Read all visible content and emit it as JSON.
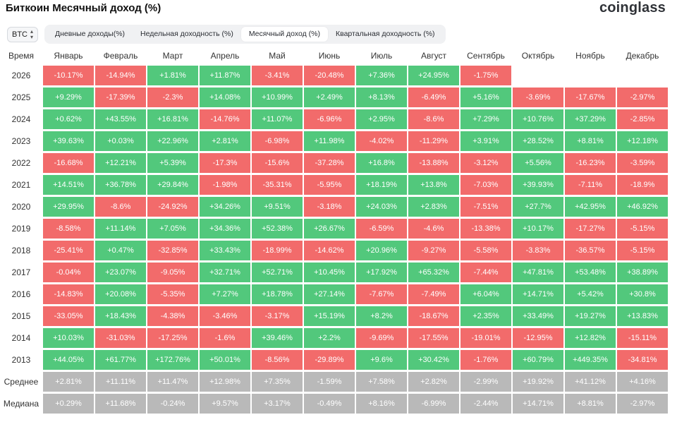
{
  "header": {
    "title": "Биткоин Месячный доход (%)",
    "logo": "coinglass"
  },
  "asset_select": {
    "value": "BTC"
  },
  "tabs": [
    {
      "label": "Дневные доходы(%)",
      "active": false
    },
    {
      "label": "Недельная доходность (%)",
      "active": false
    },
    {
      "label": "Месячный доход (%)",
      "active": true
    },
    {
      "label": "Квартальная доходность (%)",
      "active": false
    }
  ],
  "table": {
    "corner": "Время",
    "months": [
      "Январь",
      "Февраль",
      "Март",
      "Апрель",
      "Май",
      "Июнь",
      "Июль",
      "Август",
      "Сентябрь",
      "Октябрь",
      "Ноябрь",
      "Декабрь"
    ],
    "rows": [
      {
        "label": "2026",
        "kind": "year",
        "values": [
          "-10.17%",
          "-14.94%",
          "+1.81%",
          "+11.87%",
          "-3.41%",
          "-20.48%",
          "+7.36%",
          "+24.95%",
          "-1.75%",
          "",
          "",
          ""
        ]
      },
      {
        "label": "2025",
        "kind": "year",
        "values": [
          "+9.29%",
          "-17.39%",
          "-2.3%",
          "+14.08%",
          "+10.99%",
          "+2.49%",
          "+8.13%",
          "-6.49%",
          "+5.16%",
          "-3.69%",
          "-17.67%",
          "-2.97%"
        ]
      },
      {
        "label": "2024",
        "kind": "year",
        "values": [
          "+0.62%",
          "+43.55%",
          "+16.81%",
          "-14.76%",
          "+11.07%",
          "-6.96%",
          "+2.95%",
          "-8.6%",
          "+7.29%",
          "+10.76%",
          "+37.29%",
          "-2.85%"
        ]
      },
      {
        "label": "2023",
        "kind": "year",
        "values": [
          "+39.63%",
          "+0.03%",
          "+22.96%",
          "+2.81%",
          "-6.98%",
          "+11.98%",
          "-4.02%",
          "-11.29%",
          "+3.91%",
          "+28.52%",
          "+8.81%",
          "+12.18%"
        ]
      },
      {
        "label": "2022",
        "kind": "year",
        "values": [
          "-16.68%",
          "+12.21%",
          "+5.39%",
          "-17.3%",
          "-15.6%",
          "-37.28%",
          "+16.8%",
          "-13.88%",
          "-3.12%",
          "+5.56%",
          "-16.23%",
          "-3.59%"
        ]
      },
      {
        "label": "2021",
        "kind": "year",
        "values": [
          "+14.51%",
          "+36.78%",
          "+29.84%",
          "-1.98%",
          "-35.31%",
          "-5.95%",
          "+18.19%",
          "+13.8%",
          "-7.03%",
          "+39.93%",
          "-7.11%",
          "-18.9%"
        ]
      },
      {
        "label": "2020",
        "kind": "year",
        "values": [
          "+29.95%",
          "-8.6%",
          "-24.92%",
          "+34.26%",
          "+9.51%",
          "-3.18%",
          "+24.03%",
          "+2.83%",
          "-7.51%",
          "+27.7%",
          "+42.95%",
          "+46.92%"
        ]
      },
      {
        "label": "2019",
        "kind": "year",
        "values": [
          "-8.58%",
          "+11.14%",
          "+7.05%",
          "+34.36%",
          "+52.38%",
          "+26.67%",
          "-6.59%",
          "-4.6%",
          "-13.38%",
          "+10.17%",
          "-17.27%",
          "-5.15%"
        ]
      },
      {
        "label": "2018",
        "kind": "year",
        "values": [
          "-25.41%",
          "+0.47%",
          "-32.85%",
          "+33.43%",
          "-18.99%",
          "-14.62%",
          "+20.96%",
          "-9.27%",
          "-5.58%",
          "-3.83%",
          "-36.57%",
          "-5.15%"
        ]
      },
      {
        "label": "2017",
        "kind": "year",
        "values": [
          "-0.04%",
          "+23.07%",
          "-9.05%",
          "+32.71%",
          "+52.71%",
          "+10.45%",
          "+17.92%",
          "+65.32%",
          "-7.44%",
          "+47.81%",
          "+53.48%",
          "+38.89%"
        ]
      },
      {
        "label": "2016",
        "kind": "year",
        "values": [
          "-14.83%",
          "+20.08%",
          "-5.35%",
          "+7.27%",
          "+18.78%",
          "+27.14%",
          "-7.67%",
          "-7.49%",
          "+6.04%",
          "+14.71%",
          "+5.42%",
          "+30.8%"
        ]
      },
      {
        "label": "2015",
        "kind": "year",
        "values": [
          "-33.05%",
          "+18.43%",
          "-4.38%",
          "-3.46%",
          "-3.17%",
          "+15.19%",
          "+8.2%",
          "-18.67%",
          "+2.35%",
          "+33.49%",
          "+19.27%",
          "+13.83%"
        ]
      },
      {
        "label": "2014",
        "kind": "year",
        "values": [
          "+10.03%",
          "-31.03%",
          "-17.25%",
          "-1.6%",
          "+39.46%",
          "+2.2%",
          "-9.69%",
          "-17.55%",
          "-19.01%",
          "-12.95%",
          "+12.82%",
          "-15.11%"
        ]
      },
      {
        "label": "2013",
        "kind": "year",
        "values": [
          "+44.05%",
          "+61.77%",
          "+172.76%",
          "+50.01%",
          "-8.56%",
          "-29.89%",
          "+9.6%",
          "+30.42%",
          "-1.76%",
          "+60.79%",
          "+449.35%",
          "-34.81%"
        ]
      },
      {
        "label": "Среднее",
        "kind": "stat",
        "values": [
          "+2.81%",
          "+11.11%",
          "+11.47%",
          "+12.98%",
          "+7.35%",
          "-1.59%",
          "+7.58%",
          "+2.82%",
          "-2.99%",
          "+19.92%",
          "+41.12%",
          "+4.16%"
        ]
      },
      {
        "label": "Медиана",
        "kind": "stat",
        "values": [
          "+0.29%",
          "+11.68%",
          "-0.24%",
          "+9.57%",
          "+3.17%",
          "-0.49%",
          "+8.16%",
          "-6.99%",
          "-2.44%",
          "+14.71%",
          "+8.81%",
          "-2.97%"
        ]
      }
    ]
  },
  "colors": {
    "positive": "#52c87c",
    "negative": "#f26b6b",
    "stat": "#b9b9b9"
  }
}
